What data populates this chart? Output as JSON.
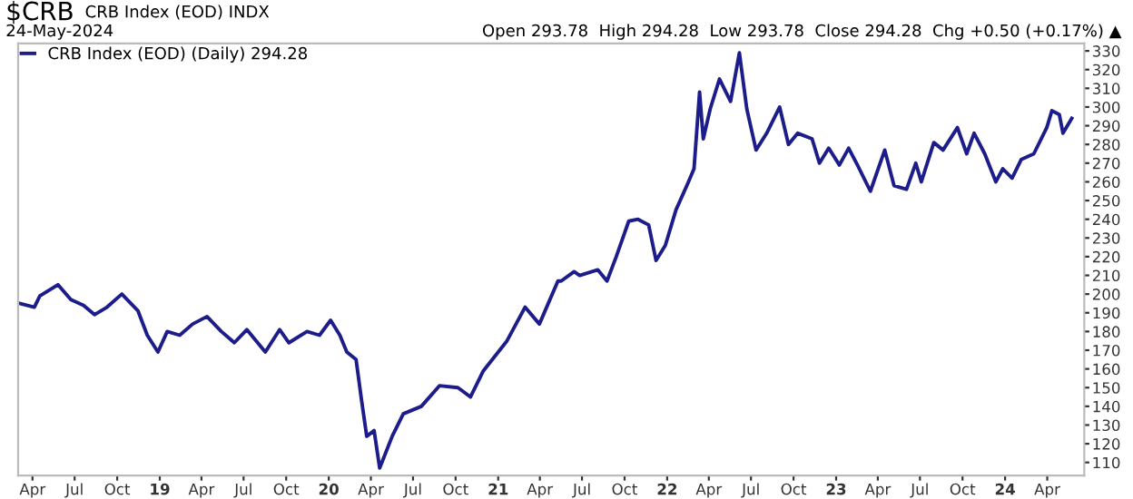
{
  "chart_data": {
    "type": "line",
    "title": "$CRB",
    "annotations": [
      "CRB Index (EOD) INDX",
      "24-May-2024",
      "Open 293.78  High 294.28  Low 293.78  Close 294.28  Chg +0.50 (+0.17%) ▲"
    ],
    "legend": "top left",
    "grid": false,
    "marker": "none",
    "line_style": "solid",
    "xlim": [
      "2018-03-01",
      "2024-06-20"
    ],
    "xticks": [
      {
        "value": "2018-04-01",
        "label": "Apr"
      },
      {
        "value": "2018-07-01",
        "label": "Jul"
      },
      {
        "value": "2018-10-01",
        "label": "Oct"
      },
      {
        "value": "2019-01-01",
        "label": "19"
      },
      {
        "value": "2019-04-01",
        "label": "Apr"
      },
      {
        "value": "2019-07-01",
        "label": "Jul"
      },
      {
        "value": "2019-10-01",
        "label": "Oct"
      },
      {
        "value": "2020-01-01",
        "label": "20"
      },
      {
        "value": "2020-04-01",
        "label": "Apr"
      },
      {
        "value": "2020-07-01",
        "label": "Jul"
      },
      {
        "value": "2020-10-01",
        "label": "Oct"
      },
      {
        "value": "2021-01-01",
        "label": "21"
      },
      {
        "value": "2021-04-01",
        "label": "Apr"
      },
      {
        "value": "2021-07-01",
        "label": "Jul"
      },
      {
        "value": "2021-10-01",
        "label": "Oct"
      },
      {
        "value": "2022-01-01",
        "label": "22"
      },
      {
        "value": "2022-04-01",
        "label": "Apr"
      },
      {
        "value": "2022-07-01",
        "label": "Jul"
      },
      {
        "value": "2022-10-01",
        "label": "Oct"
      },
      {
        "value": "2023-01-01",
        "label": "23"
      },
      {
        "value": "2023-04-01",
        "label": "Apr"
      },
      {
        "value": "2023-07-01",
        "label": "Jul"
      },
      {
        "value": "2023-10-01",
        "label": "Oct"
      },
      {
        "value": "2024-01-01",
        "label": "24"
      },
      {
        "value": "2024-04-01",
        "label": "Apr"
      }
    ],
    "ylim": [
      103,
      334
    ],
    "yticks": [
      110,
      120,
      130,
      140,
      150,
      160,
      170,
      180,
      190,
      200,
      210,
      220,
      230,
      240,
      250,
      260,
      270,
      280,
      290,
      300,
      310,
      320,
      330
    ],
    "x": [
      "2018-03-04",
      "2018-04-05",
      "2018-04-17",
      "2018-05-26",
      "2018-06-23",
      "2018-07-20",
      "2018-08-13",
      "2018-09-09",
      "2018-10-11",
      "2018-11-15",
      "2018-12-05",
      "2018-12-28",
      "2019-01-17",
      "2019-02-13",
      "2019-03-13",
      "2019-04-13",
      "2019-05-14",
      "2019-06-11",
      "2019-07-08",
      "2019-08-17",
      "2019-09-17",
      "2019-10-07",
      "2019-11-15",
      "2019-12-12",
      "2020-01-05",
      "2020-01-25",
      "2020-02-09",
      "2020-02-29",
      "2020-03-12",
      "2020-03-23",
      "2020-04-08",
      "2020-04-20",
      "2020-05-17",
      "2020-06-10",
      "2020-07-19",
      "2020-08-27",
      "2020-10-06",
      "2020-11-02",
      "2020-11-30",
      "2021-01-20",
      "2021-02-28",
      "2021-03-31",
      "2021-05-10",
      "2021-05-17",
      "2021-06-14",
      "2021-06-26",
      "2021-08-04",
      "2021-08-24",
      "2021-09-13",
      "2021-10-10",
      "2021-10-30",
      "2021-11-22",
      "2021-12-08",
      "2021-12-28",
      "2022-01-20",
      "2022-02-16",
      "2022-02-28",
      "2022-03-12",
      "2022-03-20",
      "2022-04-04",
      "2022-04-24",
      "2022-05-18",
      "2022-06-06",
      "2022-06-22",
      "2022-07-12",
      "2022-08-04",
      "2022-09-01",
      "2022-09-20",
      "2022-10-10",
      "2022-11-10",
      "2022-11-26",
      "2022-12-16",
      "2023-01-08",
      "2023-01-28",
      "2023-02-16",
      "2023-03-16",
      "2023-04-16",
      "2023-05-06",
      "2023-06-02",
      "2023-06-22",
      "2023-07-04",
      "2023-07-31",
      "2023-08-20",
      "2023-09-20",
      "2023-10-10",
      "2023-10-26",
      "2023-11-18",
      "2023-12-12",
      "2023-12-27",
      "2024-01-16",
      "2024-02-05",
      "2024-03-03",
      "2024-03-31",
      "2024-04-11",
      "2024-04-27",
      "2024-05-05",
      "2024-05-24"
    ],
    "series": [
      {
        "name": "CRB Index (EOD) (Daily) 294.28",
        "color": "#1c1c8a",
        "values": [
          195,
          193,
          199,
          205,
          197,
          194,
          189,
          193,
          200,
          191,
          178,
          169,
          180,
          178,
          184,
          188,
          180,
          174,
          181,
          169,
          181,
          174,
          180,
          178,
          186,
          178,
          169,
          165,
          143,
          124,
          127,
          107,
          124,
          136,
          140,
          151,
          150,
          145,
          159,
          175,
          193,
          184,
          207,
          207,
          212,
          210,
          213,
          207,
          220,
          239,
          240,
          237,
          218,
          226,
          245,
          260,
          267,
          308,
          283,
          299,
          315,
          303,
          329,
          299,
          277,
          286,
          300,
          280,
          286,
          283,
          270,
          278,
          269,
          278,
          269,
          255,
          277,
          258,
          256,
          270,
          260,
          281,
          277,
          289,
          275,
          286,
          275,
          260,
          267,
          262,
          272,
          275,
          289,
          298,
          296,
          286,
          294
        ]
      }
    ]
  }
}
